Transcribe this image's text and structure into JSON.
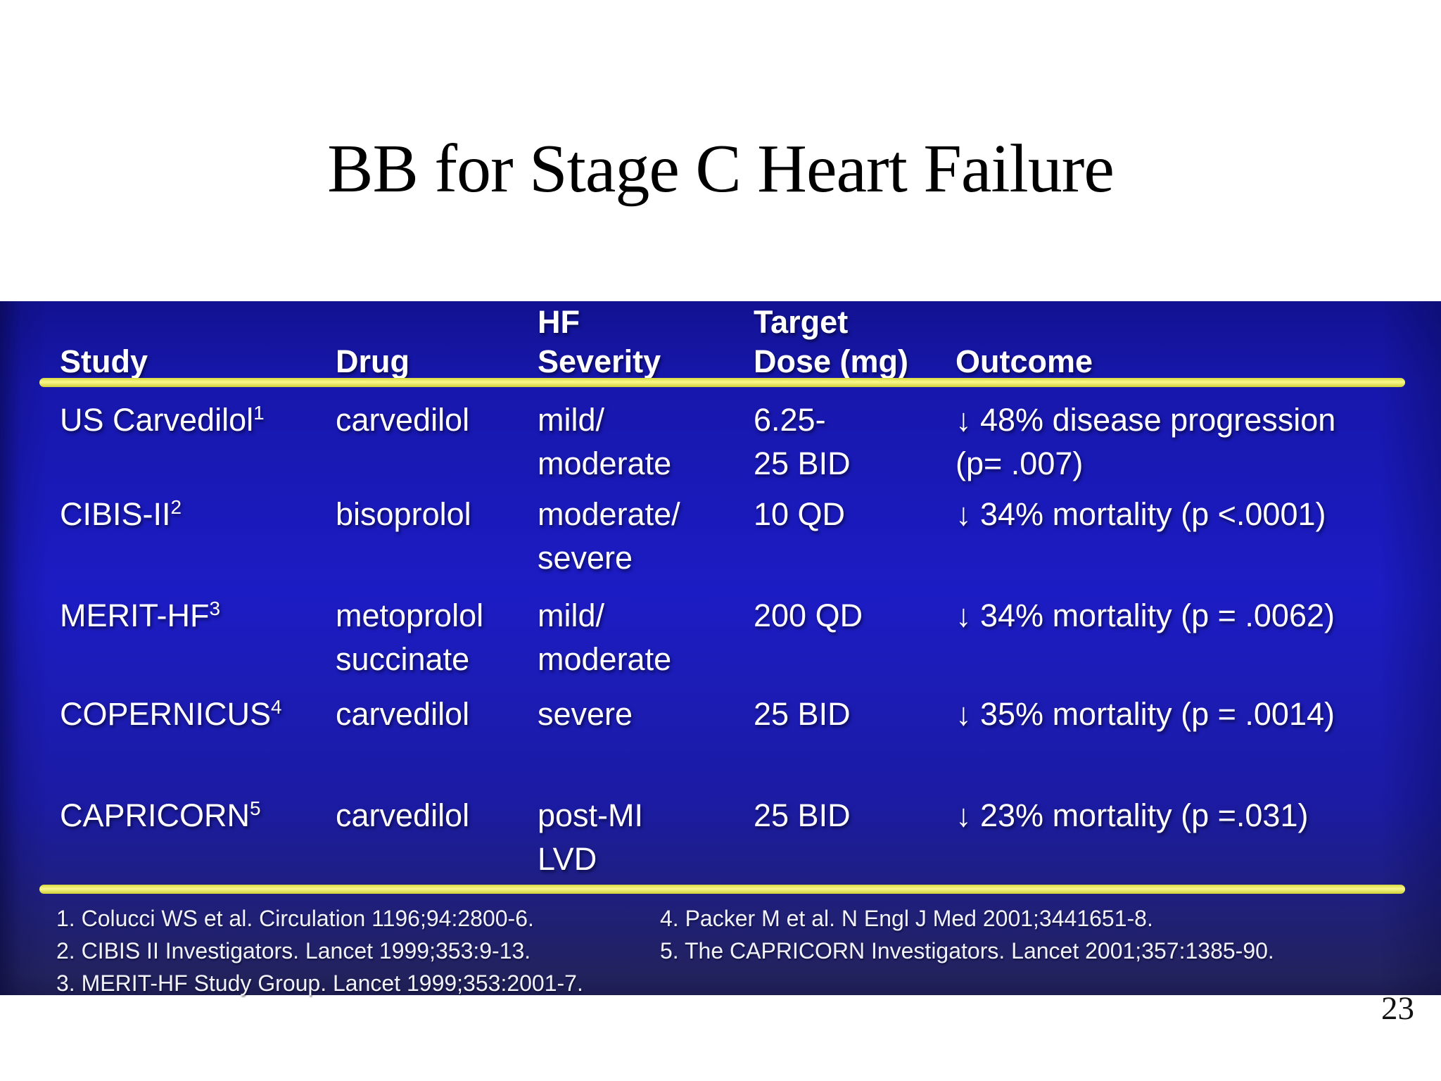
{
  "title": "BB for Stage C Heart Failure",
  "page_number": "23",
  "colors": {
    "panel_blue_top": "#121292",
    "panel_blue_bright": "#1c1cc4",
    "panel_blue_bottom": "#1d1d52",
    "divider_yellow": "#efef4e",
    "table_text": "#ffffff",
    "title_text": "#000000"
  },
  "table": {
    "columns": [
      {
        "id": "study",
        "label_lines": [
          "",
          "Study"
        ]
      },
      {
        "id": "drug",
        "label_lines": [
          "",
          "Drug"
        ]
      },
      {
        "id": "severity",
        "label_lines": [
          "HF",
          "Severity"
        ]
      },
      {
        "id": "dose",
        "label_lines": [
          "Target",
          "Dose (mg)"
        ]
      },
      {
        "id": "outcome",
        "label_lines": [
          "",
          "Outcome"
        ]
      }
    ],
    "rows": [
      {
        "study": "US Carvedilol",
        "study_sup": "1",
        "drug_lines": [
          "carvedilol"
        ],
        "severity_lines": [
          "mild/",
          "moderate"
        ],
        "dose_lines": [
          "6.25-",
          "25 BID"
        ],
        "outcome_lines": [
          "↓ 48% disease progression",
          "(p= .007)"
        ]
      },
      {
        "study": "CIBIS-II",
        "study_sup": "2",
        "drug_lines": [
          "bisoprolol"
        ],
        "severity_lines": [
          "moderate/",
          "severe"
        ],
        "dose_lines": [
          "10 QD"
        ],
        "outcome_lines": [
          "↓ 34% mortality (p <.0001)"
        ]
      },
      {
        "study": "MERIT-HF",
        "study_sup": "3",
        "drug_lines": [
          "metoprolol",
          "succinate"
        ],
        "severity_lines": [
          "mild/",
          "moderate"
        ],
        "dose_lines": [
          "200 QD"
        ],
        "outcome_lines": [
          "↓ 34% mortality (p = .0062)"
        ]
      },
      {
        "study": "COPERNICUS",
        "study_sup": "4",
        "drug_lines": [
          "carvedilol"
        ],
        "severity_lines": [
          "severe"
        ],
        "dose_lines": [
          "25 BID"
        ],
        "outcome_lines": [
          "↓ 35% mortality (p = .0014)"
        ]
      },
      {
        "study": "CAPRICORN",
        "study_sup": "5",
        "drug_lines": [
          "carvedilol"
        ],
        "severity_lines": [
          "post-MI",
          "LVD"
        ],
        "dose_lines": [
          "25 BID"
        ],
        "outcome_lines": [
          "↓ 23% mortality (p =.031)"
        ]
      }
    ]
  },
  "footnotes": {
    "left": [
      "1. Colucci WS et al. Circulation 1196;94:2800-6.",
      "2. CIBIS II Investigators. Lancet 1999;353:9-13.",
      "3. MERIT-HF Study Group. Lancet 1999;353:2001-7."
    ],
    "right": [
      "4. Packer M et al. N Engl J Med 2001;3441651-8.",
      "5. The CAPRICORN Investigators. Lancet 2001;357:1385-90."
    ]
  }
}
